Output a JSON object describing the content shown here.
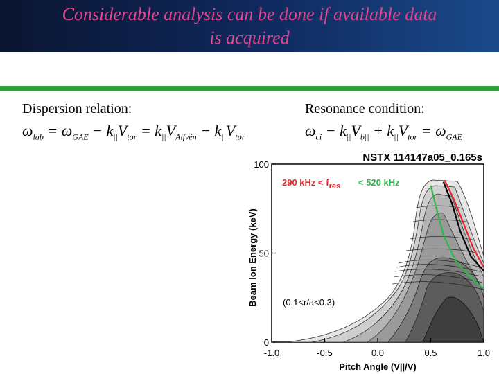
{
  "slide": {
    "title_line1": "Considerable analysis can be done if available data",
    "title_line2": "is acquired",
    "dispersion_label": "Dispersion relation:",
    "resonance_label": "Resonance condition:",
    "dispersion_eq": {
      "w": "ω",
      "lab": "lab",
      "eq": " = ",
      "gae": "GAE",
      "minus": " − ",
      "k": "k",
      "par": "||",
      "V": "V",
      "tor": "tor",
      "alfven": "Alfvén"
    },
    "resonance_eq": {
      "ci": "ci",
      "b": "b||",
      "plus": " + "
    }
  },
  "chart_data": {
    "type": "contour",
    "title": "NSTX 114147a05_0.165s",
    "xlabel": "Pitch Angle (V||/V)",
    "ylabel": "Beam Ion Energy (keV)",
    "xlim": [
      -1.0,
      1.0
    ],
    "ylim": [
      0,
      100
    ],
    "x_ticks": [
      "-1.0",
      "-0.5",
      "0.0",
      "0.5",
      "1.0"
    ],
    "y_ticks": [
      "0",
      "50",
      "100"
    ],
    "annotation_red": "290 kHz < f",
    "annotation_sub": "res",
    "annotation_green": "< 520 kHz",
    "annotation_region": "(0.1<r/a<0.3)",
    "colors": {
      "red": "#e8262b",
      "green": "#2fb84a",
      "black": "#000000"
    },
    "curves": [
      {
        "name": "black",
        "points": [
          [
            0.62,
            90
          ],
          [
            0.7,
            78
          ],
          [
            0.78,
            62
          ],
          [
            0.88,
            48
          ],
          [
            1.0,
            40
          ]
        ]
      },
      {
        "name": "red",
        "points": [
          [
            0.63,
            91
          ],
          [
            0.72,
            80
          ],
          [
            0.8,
            68
          ],
          [
            0.9,
            53
          ],
          [
            1.0,
            42
          ]
        ]
      },
      {
        "name": "green",
        "points": [
          [
            0.5,
            88
          ],
          [
            0.55,
            76
          ],
          [
            0.62,
            60
          ],
          [
            0.74,
            45
          ],
          [
            0.9,
            35
          ],
          [
            1.0,
            30
          ]
        ]
      }
    ]
  }
}
